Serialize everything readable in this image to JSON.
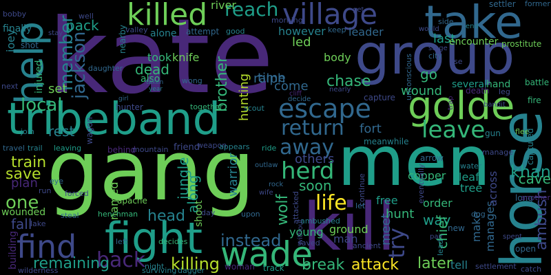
{
  "colors": {
    "background": "#000000",
    "palette": [
      "#482878",
      "#3e4989",
      "#31688e",
      "#26828e",
      "#1f9e89",
      "#35b779",
      "#6ece58",
      "#b5de2b",
      "#fde725"
    ]
  },
  "words": [
    {
      "text": "kate",
      "c": 0
    },
    {
      "text": "gang",
      "c": 6
    },
    {
      "text": "men",
      "c": 4
    },
    {
      "text": "kill",
      "c": 0
    },
    {
      "text": "group",
      "c": 1
    },
    {
      "text": "tribeband",
      "c": 4
    },
    {
      "text": "horse",
      "c": 3
    },
    {
      "text": "take",
      "c": 2
    },
    {
      "text": "help",
      "c": 3
    },
    {
      "text": "fight",
      "c": 4
    },
    {
      "text": "golde",
      "c": 6
    },
    {
      "text": "village",
      "c": 1
    },
    {
      "text": "killed",
      "c": 6
    },
    {
      "text": "wade",
      "c": 5
    },
    {
      "text": "escape",
      "c": 2
    },
    {
      "text": "find",
      "c": 1
    },
    {
      "text": "return",
      "c": 2
    },
    {
      "text": "leave",
      "c": 5
    },
    {
      "text": "herd",
      "c": 5
    },
    {
      "text": "back",
      "c": 0
    },
    {
      "text": "life",
      "c": 8
    },
    {
      "text": "jackson",
      "c": 2
    },
    {
      "text": "member",
      "c": 3
    },
    {
      "text": "local",
      "c": 5
    },
    {
      "text": "brother",
      "c": 5
    },
    {
      "text": "reach",
      "c": 4
    },
    {
      "text": "away",
      "c": 2
    },
    {
      "text": "killing",
      "c": 7
    },
    {
      "text": "instead",
      "c": 2
    },
    {
      "text": "wolf",
      "c": 5
    },
    {
      "text": "one",
      "c": 6
    },
    {
      "text": "try",
      "c": 1
    },
    {
      "text": "khan",
      "c": 4
    },
    {
      "text": "train",
      "c": 7
    },
    {
      "text": "save",
      "c": 7
    },
    {
      "text": "remaining",
      "c": 4
    },
    {
      "text": "ambush",
      "c": 1
    },
    {
      "text": "attack",
      "c": 8
    },
    {
      "text": "later",
      "c": 6
    },
    {
      "text": "break",
      "c": 5
    },
    {
      "text": "head",
      "c": 3
    },
    {
      "text": "chase",
      "c": 5
    },
    {
      "text": "dead",
      "c": 5
    },
    {
      "text": "hunting",
      "c": 7
    },
    {
      "text": "warrior",
      "c": 3
    },
    {
      "text": "cave",
      "c": 5
    },
    {
      "text": "fall",
      "c": 1
    },
    {
      "text": "jungle",
      "c": 4
    },
    {
      "text": "rest",
      "c": 3
    },
    {
      "text": "pack",
      "c": 4
    },
    {
      "text": "go",
      "c": 5
    },
    {
      "text": "fort",
      "c": 2
    },
    {
      "text": "way",
      "c": 4
    },
    {
      "text": "meet",
      "c": 2
    },
    {
      "text": "chief",
      "c": 5
    },
    {
      "text": "soon",
      "c": 5
    },
    {
      "text": "along",
      "c": 4
    },
    {
      "text": "others",
      "c": 1
    },
    {
      "text": "hunt",
      "c": 5
    },
    {
      "text": "wound",
      "c": 5
    },
    {
      "text": "led",
      "c": 6
    },
    {
      "text": "last",
      "c": 4
    },
    {
      "text": "set",
      "c": 6
    },
    {
      "text": "ralph",
      "c": 2
    },
    {
      "text": "time",
      "c": 2
    },
    {
      "text": "come",
      "c": 2
    },
    {
      "text": "however",
      "c": 3
    },
    {
      "text": "leader",
      "c": 2
    },
    {
      "text": "body",
      "c": 6
    },
    {
      "text": "river",
      "c": 6
    },
    {
      "text": "manages",
      "c": 2
    },
    {
      "text": "make",
      "c": 2
    },
    {
      "text": "tell",
      "c": 3
    },
    {
      "text": "order",
      "c": 5
    },
    {
      "text": "ground",
      "c": 6
    },
    {
      "text": "man",
      "c": 1
    },
    {
      "text": "free",
      "c": 4
    },
    {
      "text": "young",
      "c": 5
    },
    {
      "text": "across",
      "c": 1
    },
    {
      "text": "copper",
      "c": 5
    },
    {
      "text": "leaf",
      "c": 4
    },
    {
      "text": "tree",
      "c": 4
    },
    {
      "text": "plan",
      "c": 0
    },
    {
      "text": "joey",
      "c": 3
    },
    {
      "text": "finally",
      "c": 3
    },
    {
      "text": "injured",
      "c": 5
    },
    {
      "text": "shot",
      "c": 2
    },
    {
      "text": "wounded",
      "c": 6
    },
    {
      "text": "building",
      "c": 0
    },
    {
      "text": "named",
      "c": 6
    },
    {
      "text": "shoot",
      "c": 6
    },
    {
      "text": "knife",
      "c": 6
    },
    {
      "text": "took",
      "c": 5
    },
    {
      "text": "also",
      "c": 5
    },
    {
      "text": "alone",
      "c": 3
    },
    {
      "text": "attempt",
      "c": 2
    },
    {
      "text": "nearby",
      "c": 3
    },
    {
      "text": "wagon",
      "c": 1
    },
    {
      "text": "hunter",
      "c": 1
    },
    {
      "text": "behind",
      "c": 0
    },
    {
      "text": "mountain",
      "c": 1
    },
    {
      "text": "friend",
      "c": 1
    },
    {
      "text": "apache",
      "c": 6
    },
    {
      "text": "several",
      "c": 4
    },
    {
      "text": "hand",
      "c": 5
    },
    {
      "text": "encounter",
      "c": 6
    },
    {
      "text": "city",
      "c": 2
    },
    {
      "text": "use",
      "c": 1
    },
    {
      "text": "settler",
      "c": 2
    },
    {
      "text": "former",
      "c": 2
    },
    {
      "text": "prostitute",
      "c": 6
    },
    {
      "text": "battle",
      "c": 5
    },
    {
      "text": "fire",
      "c": 5
    },
    {
      "text": "death",
      "c": 0
    },
    {
      "text": "leg",
      "c": 1
    },
    {
      "text": "gun",
      "c": 3
    },
    {
      "text": "flee",
      "c": 6
    },
    {
      "text": "captured",
      "c": 3
    },
    {
      "text": "meanwhile",
      "c": 3
    },
    {
      "text": "capture",
      "c": 1
    },
    {
      "text": "unconscious",
      "c": 2
    },
    {
      "text": "eventually",
      "c": 1
    },
    {
      "text": "arrow",
      "c": 2
    },
    {
      "text": "manage",
      "c": 1
    },
    {
      "text": "water",
      "c": 3
    },
    {
      "text": "dog",
      "c": 2
    },
    {
      "text": "long",
      "c": 2
    },
    {
      "text": "another",
      "c": 0
    },
    {
      "text": "open",
      "c": 2
    },
    {
      "text": "settlement",
      "c": 1
    },
    {
      "text": "catch",
      "c": 1
    },
    {
      "text": "new",
      "c": 2
    },
    {
      "text": "ancient",
      "c": 1
    },
    {
      "text": "saved",
      "c": 1
    },
    {
      "text": "lead",
      "c": 3
    },
    {
      "text": "track",
      "c": 4
    },
    {
      "text": "woman",
      "c": 0
    },
    {
      "text": "dagger",
      "c": 3
    },
    {
      "text": "surviving",
      "c": 3
    },
    {
      "text": "night",
      "c": 3
    },
    {
      "text": "left",
      "c": 2
    },
    {
      "text": "decides",
      "c": 5
    },
    {
      "text": "henchman",
      "c": 5
    },
    {
      "text": "steal",
      "c": 2
    },
    {
      "text": "forced",
      "c": 1
    },
    {
      "text": "eye",
      "c": 2
    },
    {
      "text": "run",
      "c": 1
    },
    {
      "text": "lake",
      "c": 1
    },
    {
      "text": "wilderness",
      "c": 1
    },
    {
      "text": "travel",
      "c": 2
    },
    {
      "text": "trail",
      "c": 3
    },
    {
      "text": "leaving",
      "c": 4
    },
    {
      "text": "join",
      "c": 3
    },
    {
      "text": "girl",
      "c": 2
    },
    {
      "text": "taken",
      "c": 2
    },
    {
      "text": "year",
      "c": 3
    },
    {
      "text": "wong",
      "c": 2
    },
    {
      "text": "together",
      "c": 5
    },
    {
      "text": "weapon",
      "c": 1
    },
    {
      "text": "appears",
      "c": 3
    },
    {
      "text": "ride",
      "c": 4
    },
    {
      "text": "scout",
      "c": 3
    },
    {
      "text": "outlaw",
      "c": 2
    },
    {
      "text": "rock",
      "c": 2
    },
    {
      "text": "wife",
      "c": 1
    },
    {
      "text": "upon",
      "c": 2
    },
    {
      "text": "day",
      "c": 1
    },
    {
      "text": "attacked",
      "c": 1
    },
    {
      "text": "ambushed",
      "c": 3
    },
    {
      "text": "without",
      "c": 1
    },
    {
      "text": "continue",
      "c": 1
    },
    {
      "text": "let",
      "c": 2
    },
    {
      "text": "good",
      "c": 3
    },
    {
      "text": "morning",
      "c": 1
    },
    {
      "text": "keep",
      "c": 2
    },
    {
      "text": "valley",
      "c": 1
    },
    {
      "text": "stay",
      "c": 1
    },
    {
      "text": "bobby",
      "c": 1
    },
    {
      "text": "well",
      "c": 1
    },
    {
      "text": "daughter",
      "c": 2
    },
    {
      "text": "next",
      "c": 1
    },
    {
      "text": "get",
      "c": 1
    },
    {
      "text": "side",
      "c": 2
    },
    {
      "text": "would",
      "c": 1
    },
    {
      "text": "end",
      "c": 3
    },
    {
      "text": "stage",
      "c": 1
    },
    {
      "text": "trap",
      "c": 0
    },
    {
      "text": "nearly",
      "c": 1
    },
    {
      "text": "decide",
      "c": 2
    },
    {
      "text": "cliff",
      "c": 0
    },
    {
      "text": "pair",
      "c": 1
    },
    {
      "text": "spent",
      "c": 1
    },
    {
      "text": "bandit",
      "c": 1
    }
  ]
}
